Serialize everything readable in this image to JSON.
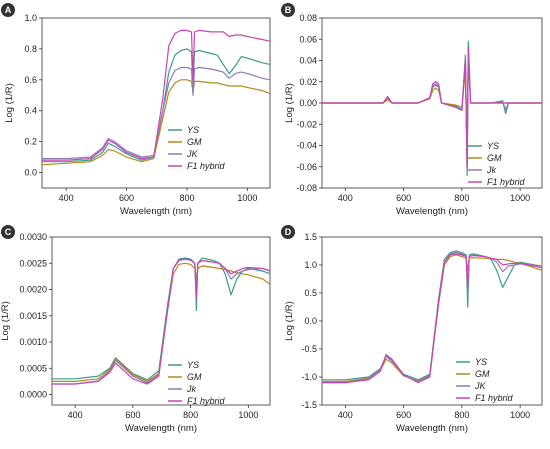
{
  "figure": {
    "panels": [
      {
        "letter": "A",
        "xlabel": "Wavelength (nm)",
        "ylabel": "Log (1/R)",
        "xticks": [
          "400",
          "600",
          "800",
          "1000"
        ],
        "yticks": [
          "0.0",
          "0.2",
          "0.4",
          "0.6",
          "0.8",
          "1.0"
        ],
        "legend": [
          "YS",
          "GM",
          "JK",
          "F1 hybrid"
        ]
      },
      {
        "letter": "B",
        "xlabel": "Wavelength (nm)",
        "ylabel": "Log (1/R)",
        "xticks": [
          "400",
          "600",
          "800",
          "1000"
        ],
        "yticks": [
          "0.08",
          "0.06",
          "0.04",
          "0.02",
          "0.00",
          "-0.02",
          "-0.04",
          "-0.06",
          "-0.08"
        ],
        "legend": [
          "YS",
          "GM",
          "Jk",
          "F1 hybrid"
        ]
      },
      {
        "letter": "C",
        "xlabel": "Wavelength (nm)",
        "ylabel": "Log (1/R)",
        "xticks": [
          "400",
          "600",
          "800",
          "1000"
        ],
        "yticks": [
          "0.0030",
          "0.0025",
          "0.0020",
          "0.0015",
          "0.0010",
          "0.0005",
          "0.0000"
        ],
        "legend": [
          "YS",
          "GM",
          "Jk",
          "F1 hybrid"
        ]
      },
      {
        "letter": "D",
        "xlabel": "Wavelength (nm)",
        "ylabel": "Log (1/R)",
        "xticks": [
          "400",
          "600",
          "800",
          "1000"
        ],
        "yticks": [
          "1.5",
          "1.0",
          "0.5",
          "0.0",
          "-0.5",
          "-1.0",
          "-1.5"
        ],
        "legend": [
          "YS",
          "GM",
          "JK",
          "F1 hybrid"
        ]
      }
    ]
  },
  "series_colors": [
    "#3a9c8a",
    "#b5891c",
    "#9179b9",
    "#c646b3"
  ],
  "chart_data": [
    {
      "type": "line",
      "xlim": [
        320,
        1075
      ],
      "ylim": [
        -0.1,
        1.0
      ],
      "series": [
        {
          "name": "YS",
          "x": [
            320,
            400,
            480,
            520,
            540,
            560,
            600,
            650,
            690,
            720,
            740,
            760,
            780,
            800,
            815,
            820,
            825,
            840,
            880,
            900,
            920,
            940,
            960,
            980,
            1000,
            1050,
            1075
          ],
          "y": [
            0.07,
            0.07,
            0.08,
            0.13,
            0.19,
            0.17,
            0.12,
            0.08,
            0.1,
            0.4,
            0.65,
            0.76,
            0.79,
            0.8,
            0.78,
            0.55,
            0.78,
            0.79,
            0.77,
            0.76,
            0.7,
            0.64,
            0.69,
            0.75,
            0.74,
            0.71,
            0.7
          ]
        },
        {
          "name": "GM",
          "x": [
            320,
            400,
            480,
            520,
            540,
            560,
            600,
            650,
            690,
            720,
            740,
            760,
            780,
            800,
            815,
            820,
            825,
            840,
            880,
            900,
            920,
            940,
            960,
            980,
            1000,
            1050,
            1075
          ],
          "y": [
            0.05,
            0.06,
            0.07,
            0.11,
            0.15,
            0.14,
            0.1,
            0.07,
            0.09,
            0.35,
            0.52,
            0.58,
            0.6,
            0.6,
            0.59,
            0.52,
            0.59,
            0.59,
            0.58,
            0.58,
            0.57,
            0.56,
            0.56,
            0.56,
            0.55,
            0.53,
            0.51
          ]
        },
        {
          "name": "JK",
          "x": [
            320,
            400,
            480,
            520,
            540,
            560,
            600,
            650,
            690,
            720,
            740,
            760,
            780,
            800,
            815,
            820,
            825,
            840,
            880,
            900,
            920,
            940,
            960,
            980,
            1000,
            1050,
            1075
          ],
          "y": [
            0.09,
            0.09,
            0.1,
            0.16,
            0.22,
            0.2,
            0.14,
            0.1,
            0.11,
            0.4,
            0.58,
            0.66,
            0.68,
            0.68,
            0.67,
            0.5,
            0.67,
            0.68,
            0.67,
            0.66,
            0.65,
            0.61,
            0.64,
            0.65,
            0.64,
            0.61,
            0.6
          ]
        },
        {
          "name": "F1 hybrid",
          "x": [
            320,
            400,
            480,
            520,
            540,
            560,
            600,
            650,
            690,
            720,
            740,
            760,
            780,
            800,
            815,
            820,
            825,
            840,
            880,
            900,
            920,
            940,
            960,
            980,
            1000,
            1050,
            1075
          ],
          "y": [
            0.08,
            0.08,
            0.09,
            0.15,
            0.21,
            0.19,
            0.13,
            0.09,
            0.1,
            0.48,
            0.82,
            0.9,
            0.92,
            0.92,
            0.91,
            0.6,
            0.91,
            0.92,
            0.91,
            0.91,
            0.91,
            0.88,
            0.89,
            0.89,
            0.88,
            0.86,
            0.85
          ]
        }
      ]
    },
    {
      "type": "line",
      "xlim": [
        320,
        1075
      ],
      "ylim": [
        -0.08,
        0.08
      ],
      "series": [
        {
          "name": "YS",
          "x": [
            320,
            400,
            500,
            530,
            545,
            560,
            600,
            650,
            690,
            700,
            710,
            720,
            730,
            780,
            800,
            812,
            818,
            822,
            830,
            860,
            900,
            940,
            950,
            960,
            1000,
            1050,
            1075
          ],
          "y": [
            0.0,
            0.0,
            0.0,
            0.0,
            0.005,
            0.0,
            0.0,
            0.0,
            0.005,
            0.015,
            0.017,
            0.015,
            0.0,
            -0.003,
            -0.006,
            0.045,
            -0.068,
            0.058,
            0.0,
            0.0,
            0.0,
            0.002,
            -0.01,
            0.0,
            0.0,
            0.0,
            0.0
          ]
        },
        {
          "name": "GM",
          "x": [
            320,
            400,
            500,
            530,
            545,
            560,
            600,
            650,
            690,
            700,
            710,
            720,
            730,
            780,
            800,
            812,
            818,
            822,
            830,
            860,
            900,
            940,
            950,
            960,
            1000,
            1050,
            1075
          ],
          "y": [
            0.0,
            0.0,
            0.0,
            0.0,
            0.003,
            0.0,
            0.0,
            0.0,
            0.004,
            0.012,
            0.014,
            0.012,
            0.0,
            -0.002,
            -0.004,
            0.03,
            -0.05,
            0.04,
            0.0,
            0.0,
            0.0,
            0.0,
            0.0,
            0.0,
            0.0,
            0.0,
            0.0
          ]
        },
        {
          "name": "Jk",
          "x": [
            320,
            400,
            500,
            530,
            545,
            560,
            600,
            650,
            690,
            700,
            710,
            720,
            730,
            780,
            800,
            812,
            818,
            822,
            830,
            860,
            900,
            940,
            950,
            960,
            1000,
            1050,
            1075
          ],
          "y": [
            0.0,
            0.0,
            0.0,
            0.0,
            0.006,
            0.0,
            0.0,
            0.0,
            0.005,
            0.016,
            0.018,
            0.016,
            0.0,
            -0.004,
            -0.007,
            0.042,
            -0.06,
            0.05,
            0.0,
            0.0,
            0.0,
            0.001,
            -0.006,
            0.0,
            0.0,
            0.0,
            0.0
          ]
        },
        {
          "name": "F1 hybrid",
          "x": [
            320,
            400,
            500,
            530,
            545,
            560,
            600,
            650,
            690,
            700,
            710,
            720,
            730,
            780,
            800,
            812,
            818,
            822,
            830,
            860,
            900,
            940,
            950,
            960,
            1000,
            1050,
            1075
          ],
          "y": [
            0.0,
            0.0,
            0.0,
            0.0,
            0.006,
            0.0,
            0.0,
            0.0,
            0.005,
            0.018,
            0.02,
            0.018,
            0.0,
            -0.004,
            -0.007,
            0.04,
            -0.062,
            0.052,
            0.0,
            0.0,
            0.0,
            0.0,
            0.0,
            0.0,
            0.0,
            0.0,
            0.0
          ]
        }
      ]
    },
    {
      "type": "line",
      "xlim": [
        320,
        1075
      ],
      "ylim": [
        -0.0002,
        0.003
      ],
      "series": [
        {
          "name": "YS",
          "x": [
            320,
            400,
            480,
            520,
            540,
            560,
            600,
            650,
            690,
            720,
            740,
            760,
            780,
            800,
            815,
            820,
            825,
            840,
            880,
            900,
            920,
            940,
            960,
            980,
            1000,
            1050,
            1075
          ],
          "y": [
            0.0003,
            0.0003,
            0.00035,
            0.0005,
            0.0007,
            0.0006,
            0.0004,
            0.00028,
            0.00045,
            0.0017,
            0.0024,
            0.00258,
            0.0026,
            0.00258,
            0.0025,
            0.0016,
            0.0025,
            0.0026,
            0.00255,
            0.0025,
            0.0023,
            0.0019,
            0.0022,
            0.00235,
            0.0024,
            0.00235,
            0.0023
          ]
        },
        {
          "name": "GM",
          "x": [
            320,
            400,
            480,
            520,
            540,
            560,
            600,
            650,
            690,
            720,
            740,
            760,
            780,
            800,
            815,
            820,
            825,
            840,
            880,
            900,
            920,
            940,
            960,
            980,
            1000,
            1050,
            1075
          ],
          "y": [
            0.00025,
            0.00025,
            0.0003,
            0.00048,
            0.00068,
            0.00058,
            0.00038,
            0.00025,
            0.0004,
            0.0016,
            0.0023,
            0.00248,
            0.0025,
            0.00248,
            0.0024,
            0.0022,
            0.0024,
            0.00245,
            0.00242,
            0.0024,
            0.00238,
            0.00235,
            0.00232,
            0.0023,
            0.00228,
            0.0022,
            0.0021
          ]
        },
        {
          "name": "Jk",
          "x": [
            320,
            400,
            480,
            520,
            540,
            560,
            600,
            650,
            690,
            720,
            740,
            760,
            780,
            800,
            815,
            820,
            825,
            840,
            880,
            900,
            920,
            940,
            960,
            980,
            1000,
            1050,
            1075
          ],
          "y": [
            0.0002,
            0.0002,
            0.00026,
            0.00045,
            0.00065,
            0.00055,
            0.00035,
            0.00022,
            0.00038,
            0.0016,
            0.0024,
            0.00256,
            0.00258,
            0.00256,
            0.0025,
            0.0018,
            0.0025,
            0.00255,
            0.00252,
            0.0025,
            0.0024,
            0.0022,
            0.0023,
            0.00235,
            0.00238,
            0.0024,
            0.00236
          ]
        },
        {
          "name": "F1 hybrid",
          "x": [
            320,
            400,
            480,
            520,
            540,
            560,
            600,
            650,
            690,
            720,
            740,
            760,
            780,
            800,
            815,
            820,
            825,
            840,
            880,
            900,
            920,
            940,
            960,
            980,
            1000,
            1050,
            1075
          ],
          "y": [
            0.0002,
            0.0002,
            0.00025,
            0.00042,
            0.0006,
            0.0005,
            0.0003,
            0.0002,
            0.00035,
            0.0016,
            0.0024,
            0.00255,
            0.00258,
            0.00256,
            0.0025,
            0.0019,
            0.0025,
            0.00255,
            0.00252,
            0.0025,
            0.0024,
            0.0023,
            0.00235,
            0.0024,
            0.00242,
            0.0024,
            0.00235
          ]
        }
      ]
    },
    {
      "type": "line",
      "xlim": [
        320,
        1075
      ],
      "ylim": [
        -1.5,
        1.5
      ],
      "series": [
        {
          "name": "YS",
          "x": [
            320,
            400,
            480,
            520,
            540,
            560,
            600,
            650,
            690,
            720,
            740,
            760,
            780,
            800,
            815,
            820,
            825,
            840,
            880,
            900,
            920,
            940,
            960,
            980,
            1000,
            1050,
            1075
          ],
          "y": [
            -1.05,
            -1.05,
            -1.0,
            -0.85,
            -0.62,
            -0.7,
            -0.95,
            -1.05,
            -0.95,
            0.4,
            1.1,
            1.22,
            1.25,
            1.22,
            1.18,
            0.25,
            1.18,
            1.2,
            1.15,
            1.1,
            0.9,
            0.6,
            0.8,
            1.0,
            1.05,
            1.0,
            0.98
          ]
        },
        {
          "name": "GM",
          "x": [
            320,
            400,
            480,
            520,
            540,
            560,
            600,
            650,
            690,
            720,
            740,
            760,
            780,
            800,
            815,
            820,
            825,
            840,
            880,
            900,
            920,
            940,
            960,
            980,
            1000,
            1050,
            1075
          ],
          "y": [
            -1.08,
            -1.08,
            -1.02,
            -0.88,
            -0.68,
            -0.75,
            -0.98,
            -1.07,
            -0.97,
            0.3,
            1.0,
            1.15,
            1.18,
            1.15,
            1.12,
            0.9,
            1.12,
            1.13,
            1.12,
            1.12,
            1.1,
            1.1,
            1.08,
            1.05,
            1.03,
            0.95,
            0.9
          ]
        },
        {
          "name": "JK",
          "x": [
            320,
            400,
            480,
            520,
            540,
            560,
            600,
            650,
            690,
            720,
            740,
            760,
            780,
            800,
            815,
            820,
            825,
            840,
            880,
            900,
            920,
            940,
            960,
            980,
            1000,
            1050,
            1075
          ],
          "y": [
            -1.1,
            -1.1,
            -1.03,
            -0.86,
            -0.63,
            -0.72,
            -0.97,
            -1.08,
            -0.98,
            0.35,
            1.05,
            1.2,
            1.22,
            1.2,
            1.15,
            0.5,
            1.15,
            1.18,
            1.15,
            1.12,
            1.05,
            0.88,
            0.98,
            1.0,
            1.02,
            1.0,
            0.98
          ]
        },
        {
          "name": "F1 hybrid",
          "x": [
            320,
            400,
            480,
            520,
            540,
            560,
            600,
            650,
            690,
            720,
            740,
            760,
            780,
            800,
            815,
            820,
            825,
            840,
            880,
            900,
            920,
            940,
            960,
            980,
            1000,
            1050,
            1075
          ],
          "y": [
            -1.1,
            -1.1,
            -1.05,
            -0.9,
            -0.6,
            -0.68,
            -0.96,
            -1.1,
            -1.0,
            0.35,
            1.05,
            1.18,
            1.2,
            1.18,
            1.15,
            0.6,
            1.15,
            1.17,
            1.15,
            1.12,
            1.1,
            1.0,
            1.02,
            1.03,
            1.03,
            0.98,
            0.95
          ]
        }
      ]
    }
  ]
}
